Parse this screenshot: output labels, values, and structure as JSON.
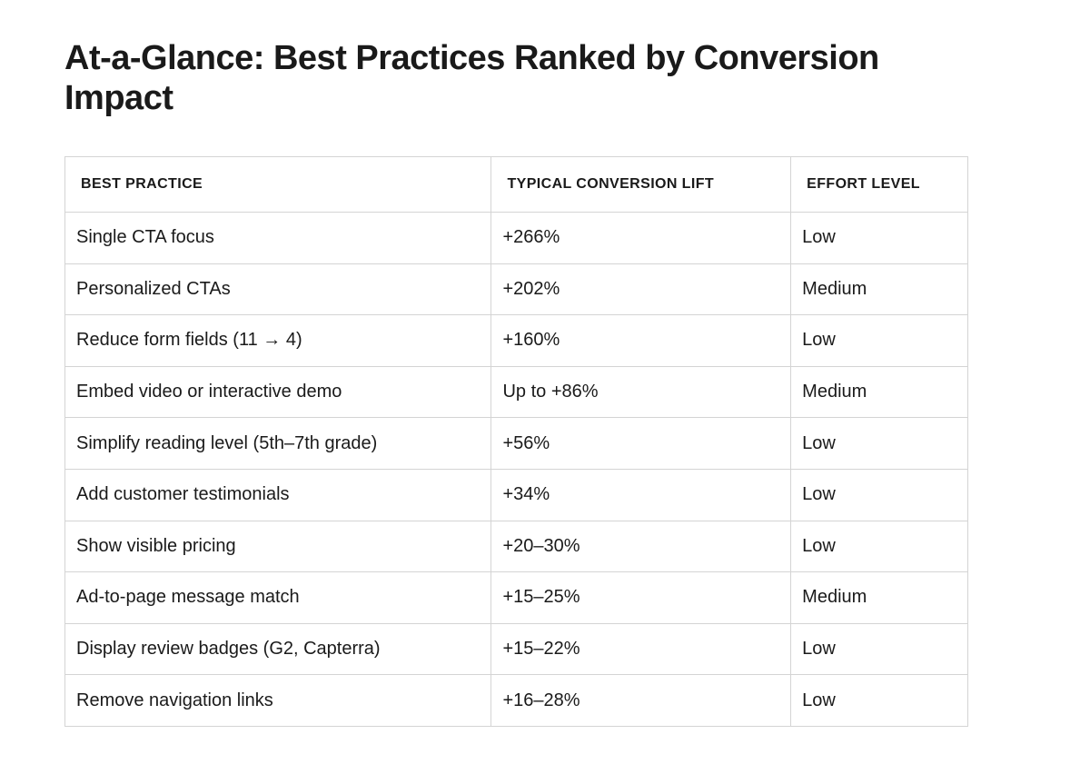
{
  "header": {
    "title": "At-a-Glance: Best Practices Ranked by Conversion Impact"
  },
  "table": {
    "columns": [
      "BEST PRACTICE",
      "TYPICAL CONVERSION LIFT",
      "EFFORT LEVEL"
    ],
    "rows": [
      [
        "Single CTA focus",
        "+266%",
        "Low"
      ],
      [
        "Personalized CTAs",
        "+202%",
        "Medium"
      ],
      [
        "Reduce form fields (11 → 4)",
        "+160%",
        "Low"
      ],
      [
        "Embed video or interactive demo",
        "Up to +86%",
        "Medium"
      ],
      [
        "Simplify reading level (5th–7th grade)",
        "+56%",
        "Low"
      ],
      [
        "Add customer testimonials",
        "+34%",
        "Low"
      ],
      [
        "Show visible pricing",
        "+20–30%",
        "Low"
      ],
      [
        "Ad-to-page message match",
        "+15–25%",
        "Medium"
      ],
      [
        "Display review badges (G2, Capterra)",
        "+15–22%",
        "Low"
      ],
      [
        "Remove navigation links",
        "+16–28%",
        "Low"
      ]
    ]
  }
}
